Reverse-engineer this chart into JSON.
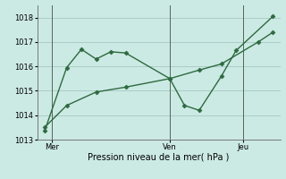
{
  "background_color": "#cceae4",
  "grid_color": "#aaccc8",
  "line_color": "#2d6a3f",
  "xlabel": "Pression niveau de la mer( hPa )",
  "ylim": [
    1013,
    1018.5
  ],
  "yticks": [
    1013,
    1014,
    1015,
    1016,
    1017,
    1018
  ],
  "day_labels": [
    "Mer",
    "Ven",
    "Jeu"
  ],
  "day_positions": [
    0.5,
    8.5,
    13.5
  ],
  "vline_x": [
    0.5,
    8.5,
    13.5
  ],
  "vline_color": "#556655",
  "line1_x": [
    0.0,
    1.5,
    2.5,
    3.5,
    4.5,
    5.5,
    8.5,
    9.5,
    10.5,
    12.0,
    13.0,
    15.5
  ],
  "line1_y": [
    1013.35,
    1015.95,
    1016.7,
    1016.3,
    1016.6,
    1016.55,
    1015.5,
    1014.4,
    1014.2,
    1015.6,
    1016.65,
    1018.05
  ],
  "line2_x": [
    0.0,
    1.5,
    3.5,
    5.5,
    8.5,
    10.5,
    12.0,
    14.5,
    15.5
  ],
  "line2_y": [
    1013.5,
    1014.4,
    1014.95,
    1015.15,
    1015.5,
    1015.85,
    1016.1,
    1017.0,
    1017.4
  ],
  "marker_size": 2.5,
  "linewidth": 1.0,
  "tick_fontsize": 6,
  "xlabel_fontsize": 7
}
